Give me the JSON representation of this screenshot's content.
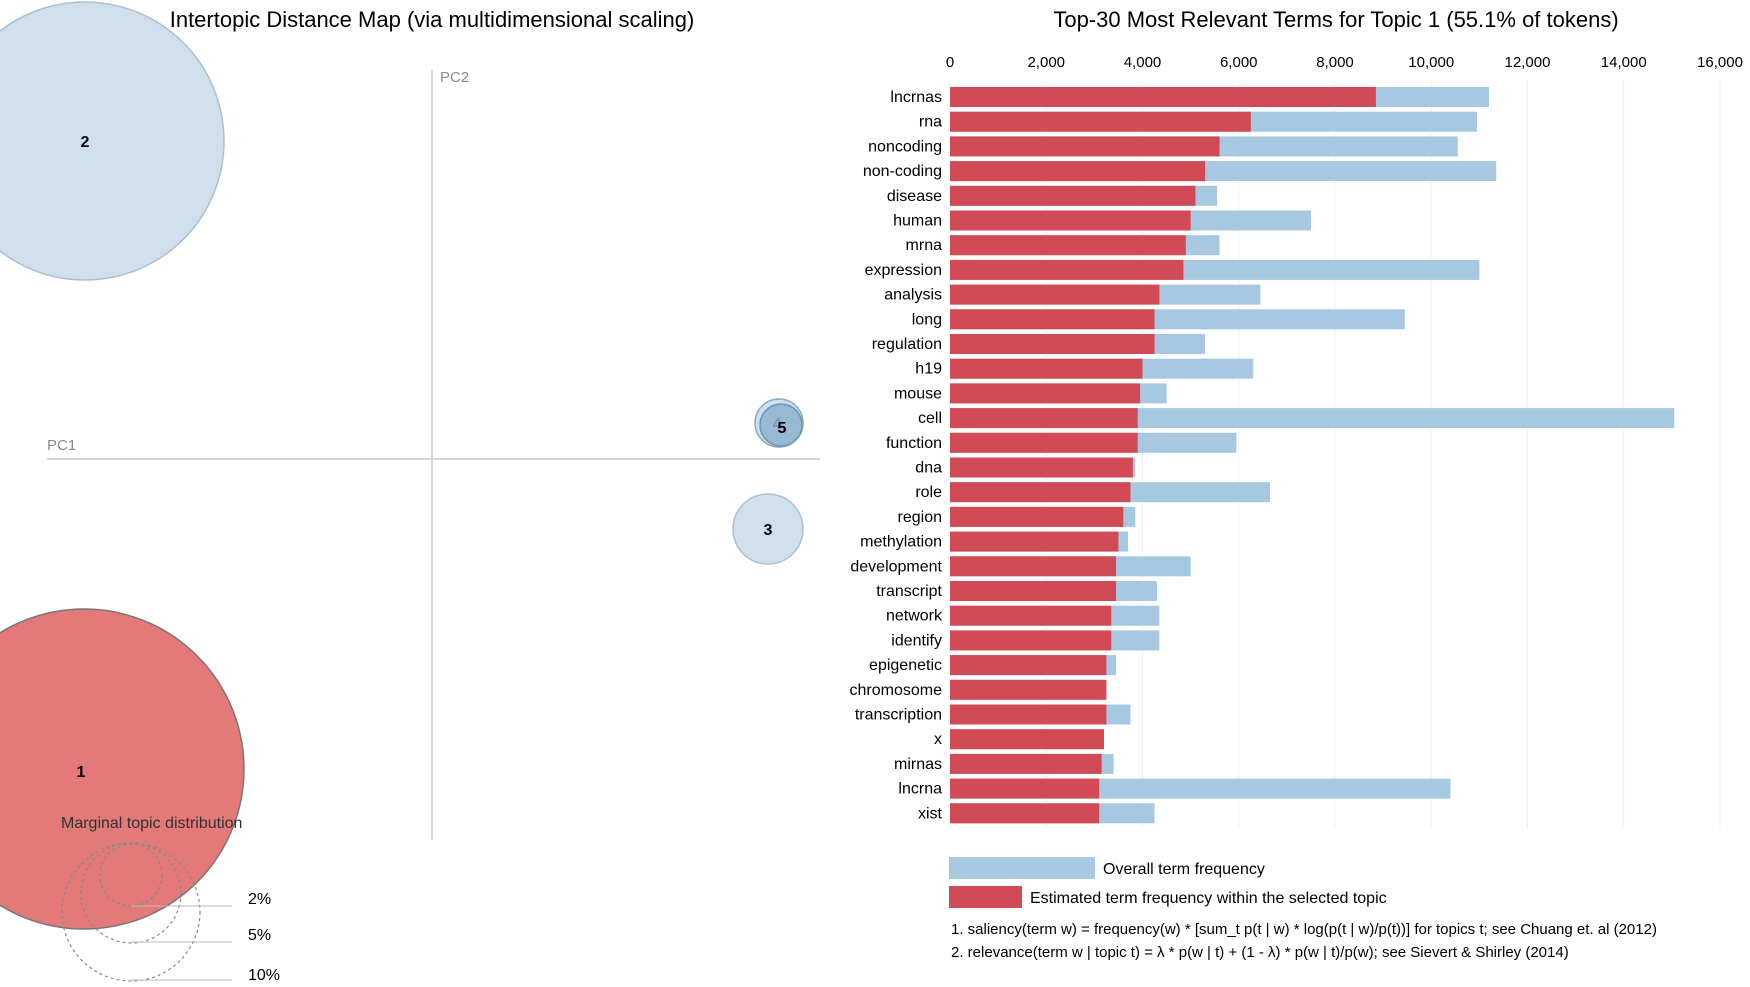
{
  "chart_data": [
    {
      "type": "scatter",
      "title": "Intertopic Distance Map (via multidimensional scaling)",
      "xlabel": "PC1",
      "ylabel": "PC2",
      "topics": [
        {
          "label": "1",
          "selected": true,
          "size": 55.1
        },
        {
          "label": "2",
          "selected": false,
          "size": 28.5
        },
        {
          "label": "3",
          "selected": false,
          "size": 6.6
        },
        {
          "label": "4",
          "selected": false,
          "size": 3.2
        },
        {
          "label": "5",
          "selected": false,
          "size": 2.9
        }
      ],
      "marginal": {
        "title": "Marginal topic distribution",
        "levels": [
          "2%",
          "5%",
          "10%"
        ]
      },
      "colors": {
        "selected": "#e06a6a",
        "unselected": "#cfdfec",
        "outline": "#9ab2c8"
      }
    },
    {
      "type": "bar",
      "title": "Top-30 Most Relevant Terms for Topic 1 (55.1% of tokens)",
      "orientation": "horizontal",
      "xlim": [
        0,
        16000
      ],
      "xticks": [
        {
          "v": 0,
          "label": "0"
        },
        {
          "v": 2000,
          "label": "2,000"
        },
        {
          "v": 4000,
          "label": "4,000"
        },
        {
          "v": 6000,
          "label": "6,000"
        },
        {
          "v": 8000,
          "label": "8,000"
        },
        {
          "v": 10000,
          "label": "10,000"
        },
        {
          "v": 12000,
          "label": "12,000"
        },
        {
          "v": 14000,
          "label": "14,000"
        },
        {
          "v": 16000,
          "label": "16,000"
        }
      ],
      "categories": [
        "lncrnas",
        "rna",
        "noncoding",
        "non-coding",
        "disease",
        "human",
        "mrna",
        "expression",
        "analysis",
        "long",
        "regulation",
        "h19",
        "mouse",
        "cell",
        "function",
        "dna",
        "role",
        "region",
        "methylation",
        "development",
        "transcript",
        "network",
        "identify",
        "epigenetic",
        "chromosome",
        "transcription",
        "x",
        "mirnas",
        "lncrna",
        "xist"
      ],
      "series": [
        {
          "name": "Overall term frequency",
          "color": "#a6c8e0",
          "values": [
            11200,
            10950,
            10550,
            11350,
            5550,
            7500,
            5600,
            11000,
            6450,
            9450,
            5300,
            6300,
            4500,
            15050,
            5950,
            3850,
            6650,
            3850,
            3700,
            5000,
            4300,
            4350,
            4350,
            3450,
            3200,
            3750,
            3200,
            3400,
            10400,
            4250
          ]
        },
        {
          "name": "Estimated term frequency within the selected topic",
          "color": "#d04b55",
          "values": [
            8850,
            6250,
            5600,
            5300,
            5100,
            5000,
            4900,
            4850,
            4350,
            4250,
            4250,
            4000,
            3950,
            3900,
            3900,
            3800,
            3750,
            3600,
            3500,
            3450,
            3450,
            3350,
            3350,
            3250,
            3250,
            3250,
            3200,
            3150,
            3100,
            3100
          ]
        }
      ],
      "legend": {
        "overall": "Overall term frequency",
        "estimated": "Estimated term frequency within the selected topic"
      },
      "notes": [
        "1. saliency(term w) = frequency(w) * [sum_t p(t | w) * log(p(t | w)/p(t))] for topics t; see Chuang et. al (2012)",
        "2. relevance(term w | topic t) = λ * p(w | t) + (1 - λ) * p(w | t)/p(w); see Sievert & Shirley (2014)"
      ]
    }
  ]
}
